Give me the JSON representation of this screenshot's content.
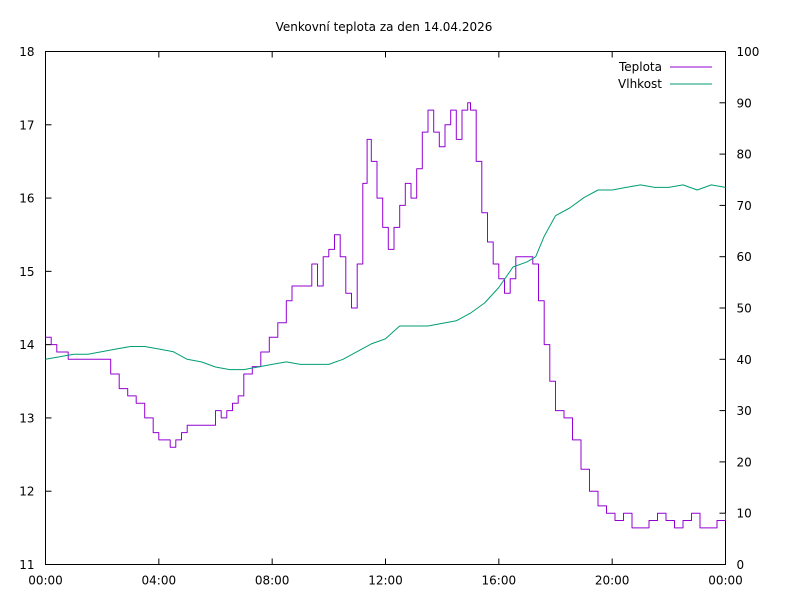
{
  "chart_data": {
    "type": "line",
    "title": "Venkovní teplota za den 14.04.2026",
    "xlabel": "",
    "ylabel": "",
    "y2label": "",
    "x_range_hours": [
      0,
      24
    ],
    "x_ticks": [
      {
        "h": 0,
        "label": "00:00"
      },
      {
        "h": 4,
        "label": "04:00"
      },
      {
        "h": 8,
        "label": "08:00"
      },
      {
        "h": 12,
        "label": "12:00"
      },
      {
        "h": 16,
        "label": "16:00"
      },
      {
        "h": 20,
        "label": "20:00"
      },
      {
        "h": 24,
        "label": "00:00"
      }
    ],
    "ylim": [
      11,
      18
    ],
    "y_ticks": [
      11,
      12,
      13,
      14,
      15,
      16,
      17,
      18
    ],
    "y2lim": [
      0,
      100
    ],
    "y2_ticks": [
      0,
      10,
      20,
      30,
      40,
      50,
      60,
      70,
      80,
      90,
      100
    ],
    "grid": false,
    "legend_position": "top-right",
    "series": [
      {
        "name": "Teplota",
        "axis": "left",
        "color": "#9400d3",
        "x": [
          0,
          0.2,
          0.4,
          0.6,
          0.8,
          1.0,
          1.5,
          2.0,
          2.3,
          2.6,
          2.9,
          3.2,
          3.5,
          3.8,
          4.0,
          4.2,
          4.4,
          4.6,
          4.8,
          5.0,
          5.3,
          5.6,
          5.9,
          6.0,
          6.2,
          6.4,
          6.6,
          6.8,
          7.0,
          7.3,
          7.6,
          7.9,
          8.2,
          8.5,
          8.7,
          9.0,
          9.2,
          9.4,
          9.6,
          9.8,
          10.0,
          10.2,
          10.4,
          10.6,
          10.8,
          11.0,
          11.2,
          11.35,
          11.5,
          11.7,
          11.9,
          12.1,
          12.3,
          12.5,
          12.7,
          12.9,
          13.1,
          13.3,
          13.5,
          13.7,
          13.9,
          14.1,
          14.3,
          14.5,
          14.7,
          14.9,
          15.0,
          15.2,
          15.4,
          15.6,
          15.8,
          16.0,
          16.2,
          16.4,
          16.6,
          16.8,
          17.0,
          17.2,
          17.4,
          17.6,
          17.8,
          18.0,
          18.3,
          18.6,
          18.9,
          19.2,
          19.5,
          19.8,
          20.1,
          20.4,
          20.7,
          21.0,
          21.3,
          21.6,
          21.9,
          22.2,
          22.5,
          22.8,
          23.1,
          23.4,
          23.7,
          24.0
        ],
        "values": [
          14.1,
          14.0,
          13.9,
          13.9,
          13.8,
          13.8,
          13.8,
          13.8,
          13.6,
          13.4,
          13.3,
          13.2,
          13.0,
          12.8,
          12.7,
          12.7,
          12.6,
          12.7,
          12.8,
          12.9,
          12.9,
          12.9,
          12.9,
          13.1,
          13.0,
          13.1,
          13.2,
          13.3,
          13.6,
          13.7,
          13.9,
          14.1,
          14.3,
          14.6,
          14.8,
          14.8,
          14.8,
          15.1,
          14.8,
          15.2,
          15.3,
          15.5,
          15.2,
          14.7,
          14.5,
          15.1,
          16.2,
          16.8,
          16.5,
          16.0,
          15.6,
          15.3,
          15.6,
          15.9,
          16.2,
          16.0,
          16.4,
          16.9,
          17.2,
          16.9,
          16.7,
          17.0,
          17.2,
          16.8,
          17.2,
          17.3,
          17.2,
          16.5,
          15.8,
          15.4,
          15.1,
          14.9,
          14.7,
          14.9,
          15.2,
          15.2,
          15.2,
          15.1,
          14.6,
          14.0,
          13.5,
          13.1,
          13.0,
          12.7,
          12.3,
          12.0,
          11.8,
          11.7,
          11.6,
          11.7,
          11.5,
          11.5,
          11.6,
          11.7,
          11.6,
          11.5,
          11.6,
          11.7,
          11.5,
          11.5,
          11.6,
          11.7
        ]
      },
      {
        "name": "Vlhkost",
        "axis": "right",
        "color": "#009e73",
        "x": [
          0,
          0.5,
          1.0,
          1.5,
          2.0,
          2.5,
          3.0,
          3.5,
          4.0,
          4.5,
          5.0,
          5.5,
          6.0,
          6.5,
          7.0,
          7.5,
          8.0,
          8.5,
          9.0,
          9.5,
          10.0,
          10.5,
          11.0,
          11.5,
          12.0,
          12.5,
          13.0,
          13.5,
          14.0,
          14.5,
          15.0,
          15.5,
          16.0,
          16.5,
          17.0,
          17.3,
          17.6,
          18.0,
          18.5,
          19.0,
          19.5,
          20.0,
          20.5,
          21.0,
          21.5,
          22.0,
          22.5,
          23.0,
          23.5,
          24.0
        ],
        "values": [
          40,
          40.5,
          41,
          41,
          41.5,
          42,
          42.5,
          42.5,
          42,
          41.5,
          40,
          39.5,
          38.5,
          38,
          38,
          38.5,
          39,
          39.5,
          39,
          39,
          39,
          40,
          41.5,
          43,
          44,
          46.5,
          46.5,
          46.5,
          47,
          47.5,
          49,
          51,
          54,
          58,
          59,
          60,
          64,
          68,
          69.5,
          71.5,
          73,
          73,
          73.5,
          74,
          73.5,
          73.5,
          74,
          73,
          74,
          73.5
        ]
      }
    ]
  }
}
